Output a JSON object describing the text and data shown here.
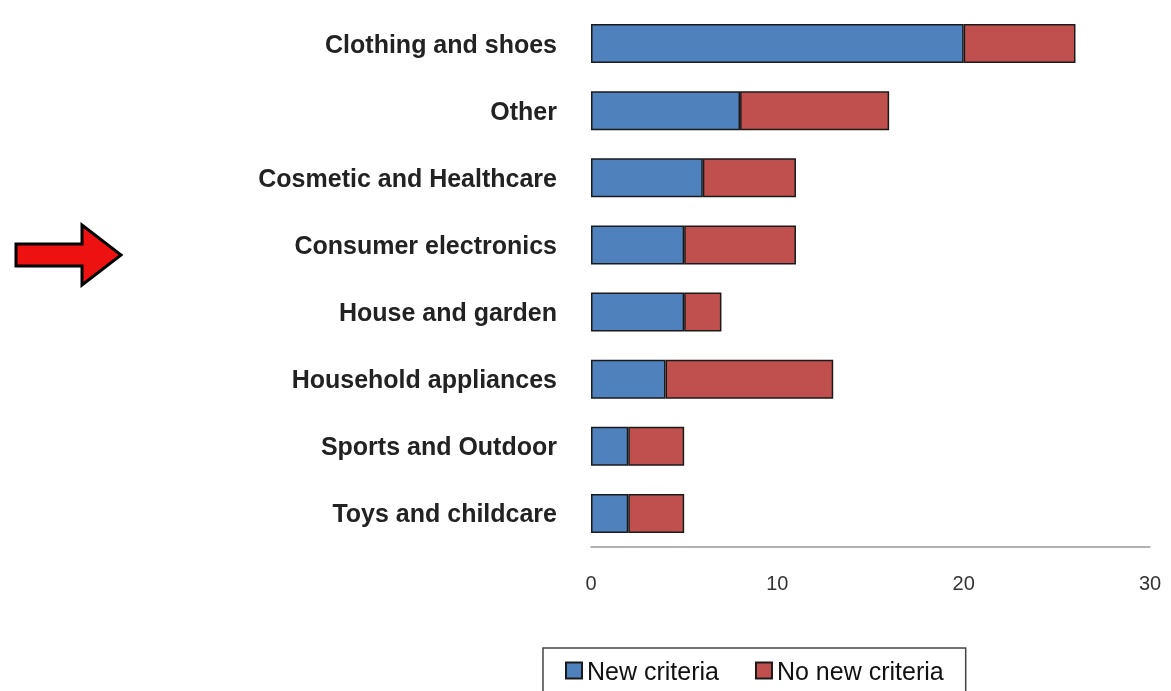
{
  "chart_data": {
    "type": "bar",
    "orientation": "horizontal",
    "stacked": true,
    "categories": [
      "Clothing and shoes",
      "Other",
      "Cosmetic and Healthcare",
      "Consumer electronics",
      "House and garden",
      "Household appliances",
      "Sports and Outdoor",
      "Toys and childcare"
    ],
    "series": [
      {
        "name": "New criteria",
        "color": "#4f81bd",
        "values": [
          20,
          8,
          6,
          5,
          5,
          4,
          2,
          2
        ]
      },
      {
        "name": "No new criteria",
        "color": "#c0504d",
        "values": [
          6,
          8,
          5,
          6,
          2,
          9,
          3,
          3
        ]
      }
    ],
    "xlim": [
      0,
      30
    ],
    "xticks": [
      0,
      10,
      20,
      30
    ],
    "grid": false,
    "legend": "bottom"
  }
}
